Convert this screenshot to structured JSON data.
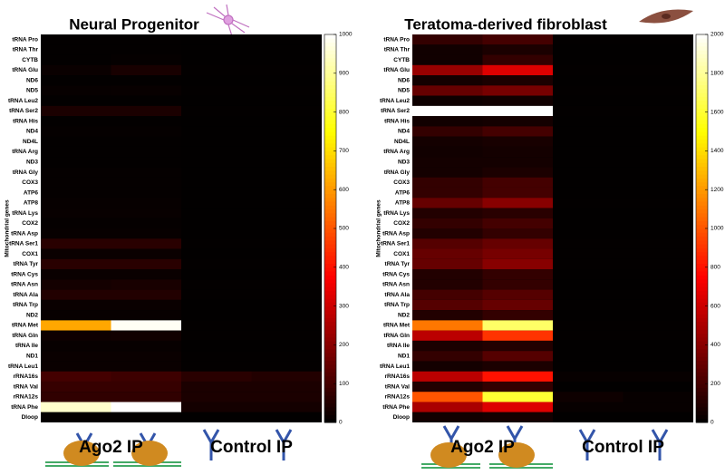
{
  "chart_data": [
    {
      "type": "heatmap",
      "title": "Neural Progenitor",
      "ylabel": "Mitochondrial genes",
      "colormap": "hot",
      "zlim": [
        0,
        1000
      ],
      "zticks": [
        0,
        100,
        200,
        300,
        400,
        500,
        600,
        700,
        800,
        900,
        1000
      ],
      "column_groups": [
        "Ago2 IP",
        "Control IP"
      ],
      "rows": [
        "tRNA Pro",
        "tRNA Thr",
        "CYTB",
        "tRNA Glu",
        "ND6",
        "ND5",
        "tRNA Leu2",
        "tRNA Ser2",
        "tRNA His",
        "ND4",
        "ND4L",
        "tRNA Arg",
        "ND3",
        "tRNA Gly",
        "COX3",
        "ATP6",
        "ATP8",
        "tRNA Lys",
        "COX2",
        "tRNA Asp",
        "tRNA Ser1",
        "COX1",
        "tRNA Tyr",
        "tRNA Cys",
        "tRNA Asn",
        "tRNA Ala",
        "tRNA Trp",
        "ND2",
        "tRNA Met",
        "tRNA Gln",
        "tRNA Ile",
        "ND1",
        "tRNA Leu1",
        "rRNA16s",
        "tRNA Val",
        "rRNA12s",
        "tRNA Phe",
        "Dloop"
      ],
      "z": [
        [
          5,
          5,
          3,
          3
        ],
        [
          5,
          5,
          3,
          3
        ],
        [
          5,
          8,
          3,
          3
        ],
        [
          15,
          35,
          5,
          5
        ],
        [
          5,
          5,
          3,
          3
        ],
        [
          10,
          12,
          5,
          5
        ],
        [
          5,
          5,
          3,
          3
        ],
        [
          40,
          40,
          5,
          5
        ],
        [
          5,
          5,
          3,
          3
        ],
        [
          8,
          8,
          3,
          3
        ],
        [
          5,
          5,
          3,
          3
        ],
        [
          5,
          5,
          3,
          3
        ],
        [
          5,
          5,
          3,
          3
        ],
        [
          8,
          8,
          3,
          3
        ],
        [
          8,
          8,
          3,
          3
        ],
        [
          8,
          8,
          3,
          3
        ],
        [
          10,
          10,
          3,
          3
        ],
        [
          12,
          12,
          3,
          3
        ],
        [
          8,
          8,
          3,
          3
        ],
        [
          10,
          10,
          3,
          3
        ],
        [
          60,
          60,
          5,
          5
        ],
        [
          15,
          15,
          3,
          3
        ],
        [
          60,
          60,
          5,
          5
        ],
        [
          15,
          15,
          3,
          3
        ],
        [
          30,
          35,
          5,
          5
        ],
        [
          50,
          50,
          5,
          5
        ],
        [
          15,
          15,
          3,
          3
        ],
        [
          10,
          10,
          3,
          3
        ],
        [
          620,
          990,
          5,
          5
        ],
        [
          20,
          25,
          5,
          5
        ],
        [
          10,
          10,
          3,
          3
        ],
        [
          15,
          15,
          5,
          5
        ],
        [
          15,
          15,
          5,
          5
        ],
        [
          100,
          90,
          60,
          50
        ],
        [
          80,
          80,
          40,
          40
        ],
        [
          70,
          70,
          40,
          40
        ],
        [
          950,
          1000,
          30,
          30
        ],
        [
          5,
          5,
          3,
          3
        ]
      ]
    },
    {
      "type": "heatmap",
      "title": "Teratoma-derived fibroblast",
      "ylabel": "Mitochondrial genes",
      "colormap": "hot",
      "zlim": [
        0,
        2000
      ],
      "zticks": [
        0,
        200,
        400,
        600,
        800,
        1000,
        1200,
        1400,
        1600,
        1800,
        2000
      ],
      "column_groups": [
        "Ago2 IP",
        "Control IP"
      ],
      "rows": [
        "tRNA Pro",
        "tRNA Thr",
        "CYTB",
        "tRNA Glu",
        "ND6",
        "ND5",
        "tRNA Leu2",
        "tRNA Ser2",
        "tRNA His",
        "ND4",
        "ND4L",
        "tRNA Arg",
        "ND3",
        "tRNA Gly",
        "COX3",
        "ATP6",
        "ATP8",
        "tRNA Lys",
        "COX2",
        "tRNA Asp",
        "tRNA Ser1",
        "COX1",
        "tRNA Tyr",
        "tRNA Cys",
        "tRNA Asn",
        "tRNA Ala",
        "tRNA Trp",
        "ND2",
        "tRNA Met",
        "tRNA Gln",
        "tRNA Ile",
        "ND1",
        "tRNA Leu1",
        "rRNA16s",
        "tRNA Val",
        "rRNA12s",
        "tRNA Phe",
        "Dloop"
      ],
      "z": [
        [
          150,
          200,
          10,
          10
        ],
        [
          50,
          80,
          5,
          5
        ],
        [
          50,
          150,
          5,
          5
        ],
        [
          450,
          650,
          10,
          10
        ],
        [
          60,
          80,
          5,
          5
        ],
        [
          300,
          350,
          10,
          10
        ],
        [
          40,
          50,
          5,
          5
        ],
        [
          2000,
          2000,
          10,
          10
        ],
        [
          50,
          60,
          5,
          5
        ],
        [
          150,
          200,
          5,
          5
        ],
        [
          60,
          70,
          5,
          5
        ],
        [
          50,
          60,
          5,
          5
        ],
        [
          60,
          60,
          5,
          5
        ],
        [
          60,
          80,
          5,
          5
        ],
        [
          150,
          200,
          5,
          5
        ],
        [
          150,
          200,
          5,
          5
        ],
        [
          300,
          400,
          10,
          10
        ],
        [
          100,
          120,
          5,
          5
        ],
        [
          150,
          200,
          5,
          5
        ],
        [
          100,
          150,
          5,
          5
        ],
        [
          250,
          300,
          10,
          10
        ],
        [
          300,
          350,
          10,
          10
        ],
        [
          300,
          400,
          10,
          10
        ],
        [
          100,
          150,
          5,
          5
        ],
        [
          100,
          150,
          5,
          5
        ],
        [
          200,
          250,
          5,
          5
        ],
        [
          250,
          300,
          10,
          10
        ],
        [
          100,
          150,
          5,
          5
        ],
        [
          1100,
          1700,
          10,
          10
        ],
        [
          550,
          900,
          10,
          10
        ],
        [
          80,
          100,
          5,
          5
        ],
        [
          150,
          250,
          5,
          5
        ],
        [
          60,
          80,
          5,
          5
        ],
        [
          550,
          800,
          20,
          20
        ],
        [
          100,
          150,
          5,
          5
        ],
        [
          1000,
          1600,
          40,
          20
        ],
        [
          500,
          650,
          20,
          20
        ],
        [
          50,
          60,
          5,
          5
        ]
      ]
    }
  ]
}
